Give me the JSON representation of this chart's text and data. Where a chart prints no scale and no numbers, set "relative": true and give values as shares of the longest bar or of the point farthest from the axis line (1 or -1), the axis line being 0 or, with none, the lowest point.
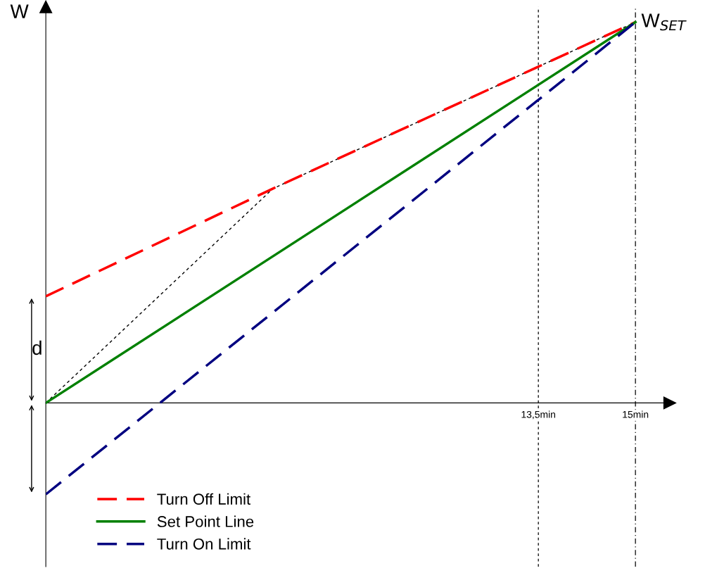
{
  "chart_data": {
    "type": "line",
    "relative": true,
    "ylabel": "W",
    "xlim": [
      5.89,
      15.53
    ],
    "xticks": [
      {
        "value": 13.5,
        "label": "13,5min"
      },
      {
        "value": 15,
        "label": "15min"
      }
    ],
    "series": [
      {
        "name": "Turn Off Limit",
        "color": "#ff0000",
        "x": [
          5.89,
          9.4,
          15
        ],
        "values": [
          0.28,
          0.563,
          1
        ],
        "line_style": "dashed"
      },
      {
        "name": "Set Point Line",
        "color": "#008000",
        "x": [
          5.89,
          15
        ],
        "values": [
          0,
          1
        ],
        "line_style": "solid"
      },
      {
        "name": "Turn On Limit",
        "color": "#000080",
        "x": [
          5.89,
          15
        ],
        "values": [
          -0.24,
          1
        ],
        "line_style": "dashed"
      },
      {
        "color": "#000000",
        "x": [
          5.89,
          9.4,
          15
        ],
        "values": [
          0,
          0.563,
          1
        ],
        "line_style": "dotted"
      }
    ],
    "ref_lines": [
      {
        "axis": "x",
        "value": 13.5,
        "color": "#000000",
        "line_style": "dotted"
      },
      {
        "axis": "x",
        "value": 15,
        "color": "#000000",
        "line_style": "dashdot"
      }
    ],
    "annotations": [
      {
        "text": "W$_{SET}$",
        "x": 15,
        "y": 1
      },
      "d"
    ],
    "legend": "bottom left",
    "grid": false,
    "marker": "none"
  }
}
